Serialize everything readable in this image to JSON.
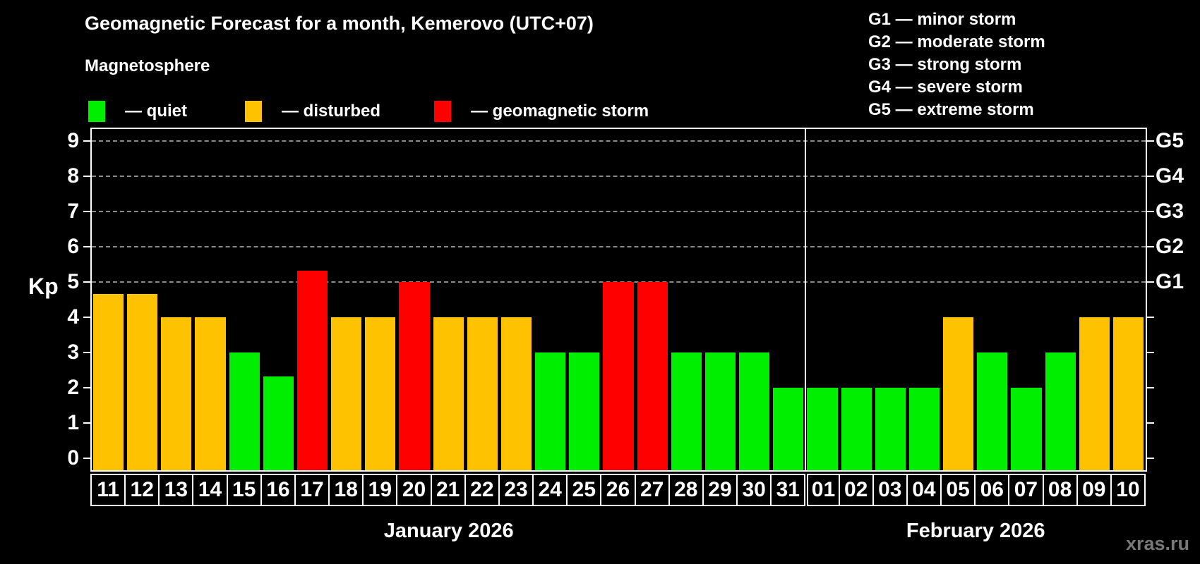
{
  "title": "Geomagnetic Forecast for a month, Kemerovo (UTC+07)",
  "legend": {
    "heading": "Magnetosphere",
    "items": [
      {
        "key": "quiet",
        "label": "— quiet",
        "color": "#00EE00"
      },
      {
        "key": "disturbed",
        "label": "— disturbed",
        "color": "#FFC200"
      },
      {
        "key": "storm",
        "label": "— geomagnetic storm",
        "color": "#FF0000"
      }
    ]
  },
  "g_legend": [
    "G1 — minor storm",
    "G2 — moderate storm",
    "G3 — strong storm",
    "G4 — severe storm",
    "G5 — extreme storm"
  ],
  "watermark": "xras.ru",
  "chart_data": {
    "type": "bar",
    "ylabel": "Kp",
    "ylim": [
      0,
      9
    ],
    "y_ticks": [
      0,
      1,
      2,
      3,
      4,
      5,
      6,
      7,
      8,
      9
    ],
    "grid_levels": [
      5,
      6,
      7,
      8,
      9
    ],
    "grid": "dashed horizontal at storm levels only",
    "legend_position": "top",
    "right_axis_labels": [
      {
        "level": 5,
        "label": "G1"
      },
      {
        "level": 6,
        "label": "G2"
      },
      {
        "level": 7,
        "label": "G3"
      },
      {
        "level": 8,
        "label": "G4"
      },
      {
        "level": 9,
        "label": "G5"
      }
    ],
    "colors": {
      "quiet": "#00EE00",
      "disturbed": "#FFC200",
      "storm": "#FF0000"
    },
    "months": [
      {
        "name": "January 2026",
        "days": 21
      },
      {
        "name": "February 2026",
        "days": 10
      }
    ],
    "days": [
      {
        "day": "11",
        "kp": 4.67,
        "status": "disturbed"
      },
      {
        "day": "12",
        "kp": 4.67,
        "status": "disturbed"
      },
      {
        "day": "13",
        "kp": 4,
        "status": "disturbed"
      },
      {
        "day": "14",
        "kp": 4,
        "status": "disturbed"
      },
      {
        "day": "15",
        "kp": 3,
        "status": "quiet"
      },
      {
        "day": "16",
        "kp": 2.33,
        "status": "quiet"
      },
      {
        "day": "17",
        "kp": 5.33,
        "status": "storm"
      },
      {
        "day": "18",
        "kp": 4,
        "status": "disturbed"
      },
      {
        "day": "19",
        "kp": 4,
        "status": "disturbed"
      },
      {
        "day": "20",
        "kp": 5,
        "status": "storm"
      },
      {
        "day": "21",
        "kp": 4,
        "status": "disturbed"
      },
      {
        "day": "22",
        "kp": 4,
        "status": "disturbed"
      },
      {
        "day": "23",
        "kp": 4,
        "status": "disturbed"
      },
      {
        "day": "24",
        "kp": 3,
        "status": "quiet"
      },
      {
        "day": "25",
        "kp": 3,
        "status": "quiet"
      },
      {
        "day": "26",
        "kp": 5,
        "status": "storm"
      },
      {
        "day": "27",
        "kp": 5,
        "status": "storm"
      },
      {
        "day": "28",
        "kp": 3,
        "status": "quiet"
      },
      {
        "day": "29",
        "kp": 3,
        "status": "quiet"
      },
      {
        "day": "30",
        "kp": 3,
        "status": "quiet"
      },
      {
        "day": "31",
        "kp": 2,
        "status": "quiet"
      },
      {
        "day": "01",
        "kp": 2,
        "status": "quiet"
      },
      {
        "day": "02",
        "kp": 2,
        "status": "quiet"
      },
      {
        "day": "03",
        "kp": 2,
        "status": "quiet"
      },
      {
        "day": "04",
        "kp": 2,
        "status": "quiet"
      },
      {
        "day": "05",
        "kp": 4,
        "status": "disturbed"
      },
      {
        "day": "06",
        "kp": 3,
        "status": "quiet"
      },
      {
        "day": "07",
        "kp": 2,
        "status": "quiet"
      },
      {
        "day": "08",
        "kp": 3,
        "status": "quiet"
      },
      {
        "day": "09",
        "kp": 4,
        "status": "disturbed"
      },
      {
        "day": "10",
        "kp": 4,
        "status": "disturbed"
      }
    ]
  }
}
